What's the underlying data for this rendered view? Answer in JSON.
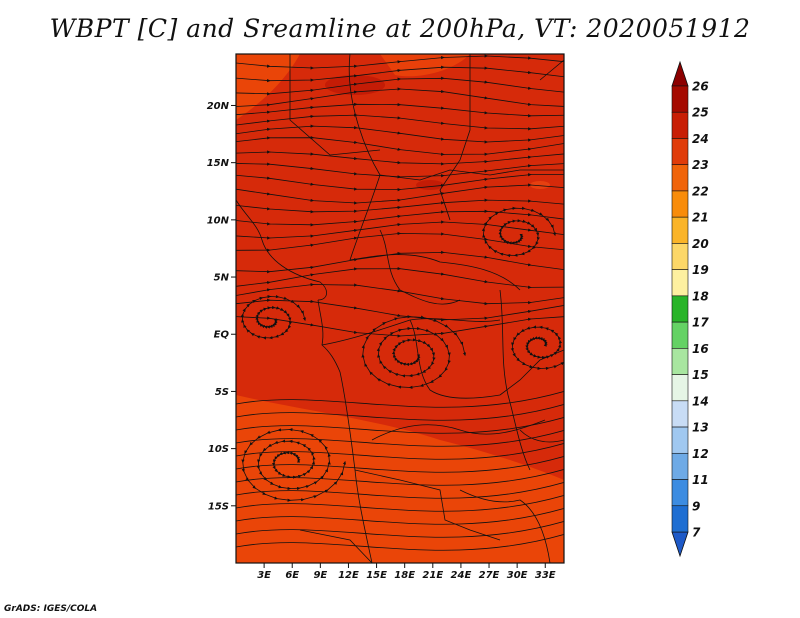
{
  "title": "WBPT [C] and Sreamline at 200hPa, VT: 2020051912",
  "credit": "GrADS: IGES/COLA",
  "map": {
    "lon_range": [
      0,
      35
    ],
    "lat_range": [
      -20,
      24.5
    ],
    "lon_ticks": [
      {
        "value": 3,
        "label": "3E"
      },
      {
        "value": 6,
        "label": "6E"
      },
      {
        "value": 9,
        "label": "9E"
      },
      {
        "value": 12,
        "label": "12E"
      },
      {
        "value": 15,
        "label": "15E"
      },
      {
        "value": 18,
        "label": "18E"
      },
      {
        "value": 21,
        "label": "21E"
      },
      {
        "value": 24,
        "label": "24E"
      },
      {
        "value": 27,
        "label": "27E"
      },
      {
        "value": 30,
        "label": "30E"
      },
      {
        "value": 33,
        "label": "33E"
      }
    ],
    "lat_ticks": [
      {
        "value": 20,
        "label": "20N"
      },
      {
        "value": 15,
        "label": "15N"
      },
      {
        "value": 10,
        "label": "10N"
      },
      {
        "value": 5,
        "label": "5N"
      },
      {
        "value": 0,
        "label": "EQ"
      },
      {
        "value": -5,
        "label": "5S"
      },
      {
        "value": -10,
        "label": "10S"
      },
      {
        "value": -15,
        "label": "15S"
      }
    ],
    "field_colors": {
      "dominant_24_25": "#d62a0a",
      "band_23_24": "#ea4508",
      "high_25_26": "#c41c06",
      "line": "#111111"
    }
  },
  "colorbar": {
    "levels": [
      "26",
      "25",
      "24",
      "23",
      "22",
      "21",
      "20",
      "19",
      "18",
      "17",
      "16",
      "15",
      "14",
      "13",
      "12",
      "11",
      "9",
      "7"
    ],
    "colors": [
      "#a50a00",
      "#c81e05",
      "#e03c0a",
      "#f0640a",
      "#f88c0a",
      "#fab428",
      "#fcd768",
      "#fdf0a0",
      "#28b428",
      "#64d264",
      "#a8e6a0",
      "#e6f5e6",
      "#c8dcf5",
      "#a0c8f0",
      "#6eaae6",
      "#3c8ce1",
      "#1e6ed2"
    ],
    "top_arrow_color": "#8c0000",
    "bottom_arrow_color": "#1e5ac8"
  }
}
